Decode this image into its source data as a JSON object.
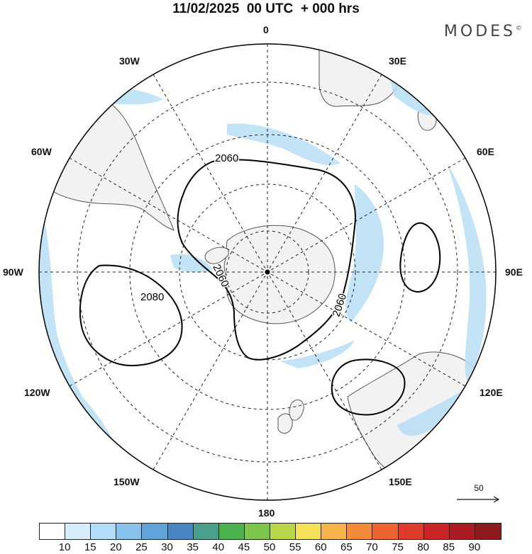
{
  "title": "11/02/2025  00 UTC  + 000 hrs",
  "brand": {
    "name": "MODES",
    "mark": "©"
  },
  "map": {
    "projection": "south-polar-stereographic",
    "background_color": "#f2f2f2",
    "ocean_color": "#ffffff",
    "shade_color": "#b8def5",
    "longitude_labels": [
      {
        "id": "0",
        "text": "0"
      },
      {
        "id": "30E",
        "text": "30E"
      },
      {
        "id": "60E",
        "text": "60E"
      },
      {
        "id": "90E",
        "text": "90E"
      },
      {
        "id": "120E",
        "text": "120E"
      },
      {
        "id": "150E",
        "text": "150E"
      },
      {
        "id": "180",
        "text": "180"
      },
      {
        "id": "150W",
        "text": "150W"
      },
      {
        "id": "120W",
        "text": "120W"
      },
      {
        "id": "90W",
        "text": "90W"
      },
      {
        "id": "60W",
        "text": "60W"
      },
      {
        "id": "30W",
        "text": "30W"
      }
    ],
    "contours": [
      {
        "id": "c2060a",
        "label": "2060"
      },
      {
        "id": "c2060b",
        "label": "2060"
      },
      {
        "id": "c2060c",
        "label": "2060"
      },
      {
        "id": "c2080",
        "label": "2080"
      }
    ]
  },
  "reference_vector": {
    "label": "50"
  },
  "colorbar": {
    "colors": [
      "#ffffff",
      "#d6eefc",
      "#b2dcf7",
      "#86c2ea",
      "#5fa3d9",
      "#4a86c3",
      "#49a08a",
      "#4cb34c",
      "#7cc54a",
      "#b8d64a",
      "#f5e05a",
      "#f6b24b",
      "#f28a3a",
      "#ea6330",
      "#dd3d2a",
      "#c92527",
      "#ab1c22",
      "#8e1a1e"
    ],
    "labels": [
      "10",
      "15",
      "20",
      "25",
      "30",
      "35",
      "40",
      "45",
      "50",
      "55",
      "60",
      "65",
      "70",
      "75",
      "80",
      "85",
      "90"
    ]
  }
}
